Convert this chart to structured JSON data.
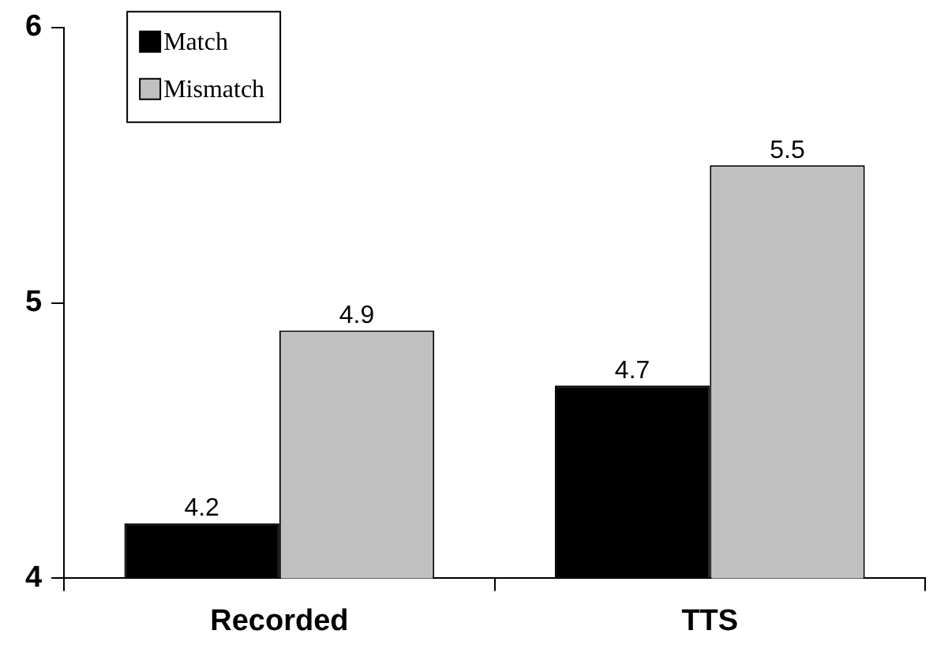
{
  "chart_data": {
    "type": "bar",
    "categories": [
      "Recorded",
      "TTS"
    ],
    "series": [
      {
        "name": "Match",
        "color": "#000000",
        "values": [
          4.2,
          4.7
        ]
      },
      {
        "name": "Mismatch",
        "color": "#c0c0c0",
        "values": [
          4.9,
          5.5
        ]
      }
    ],
    "ylim": [
      4,
      6
    ],
    "yticks": [
      4,
      5,
      6
    ],
    "grid": false,
    "legend": "top left",
    "data_labels": true
  }
}
